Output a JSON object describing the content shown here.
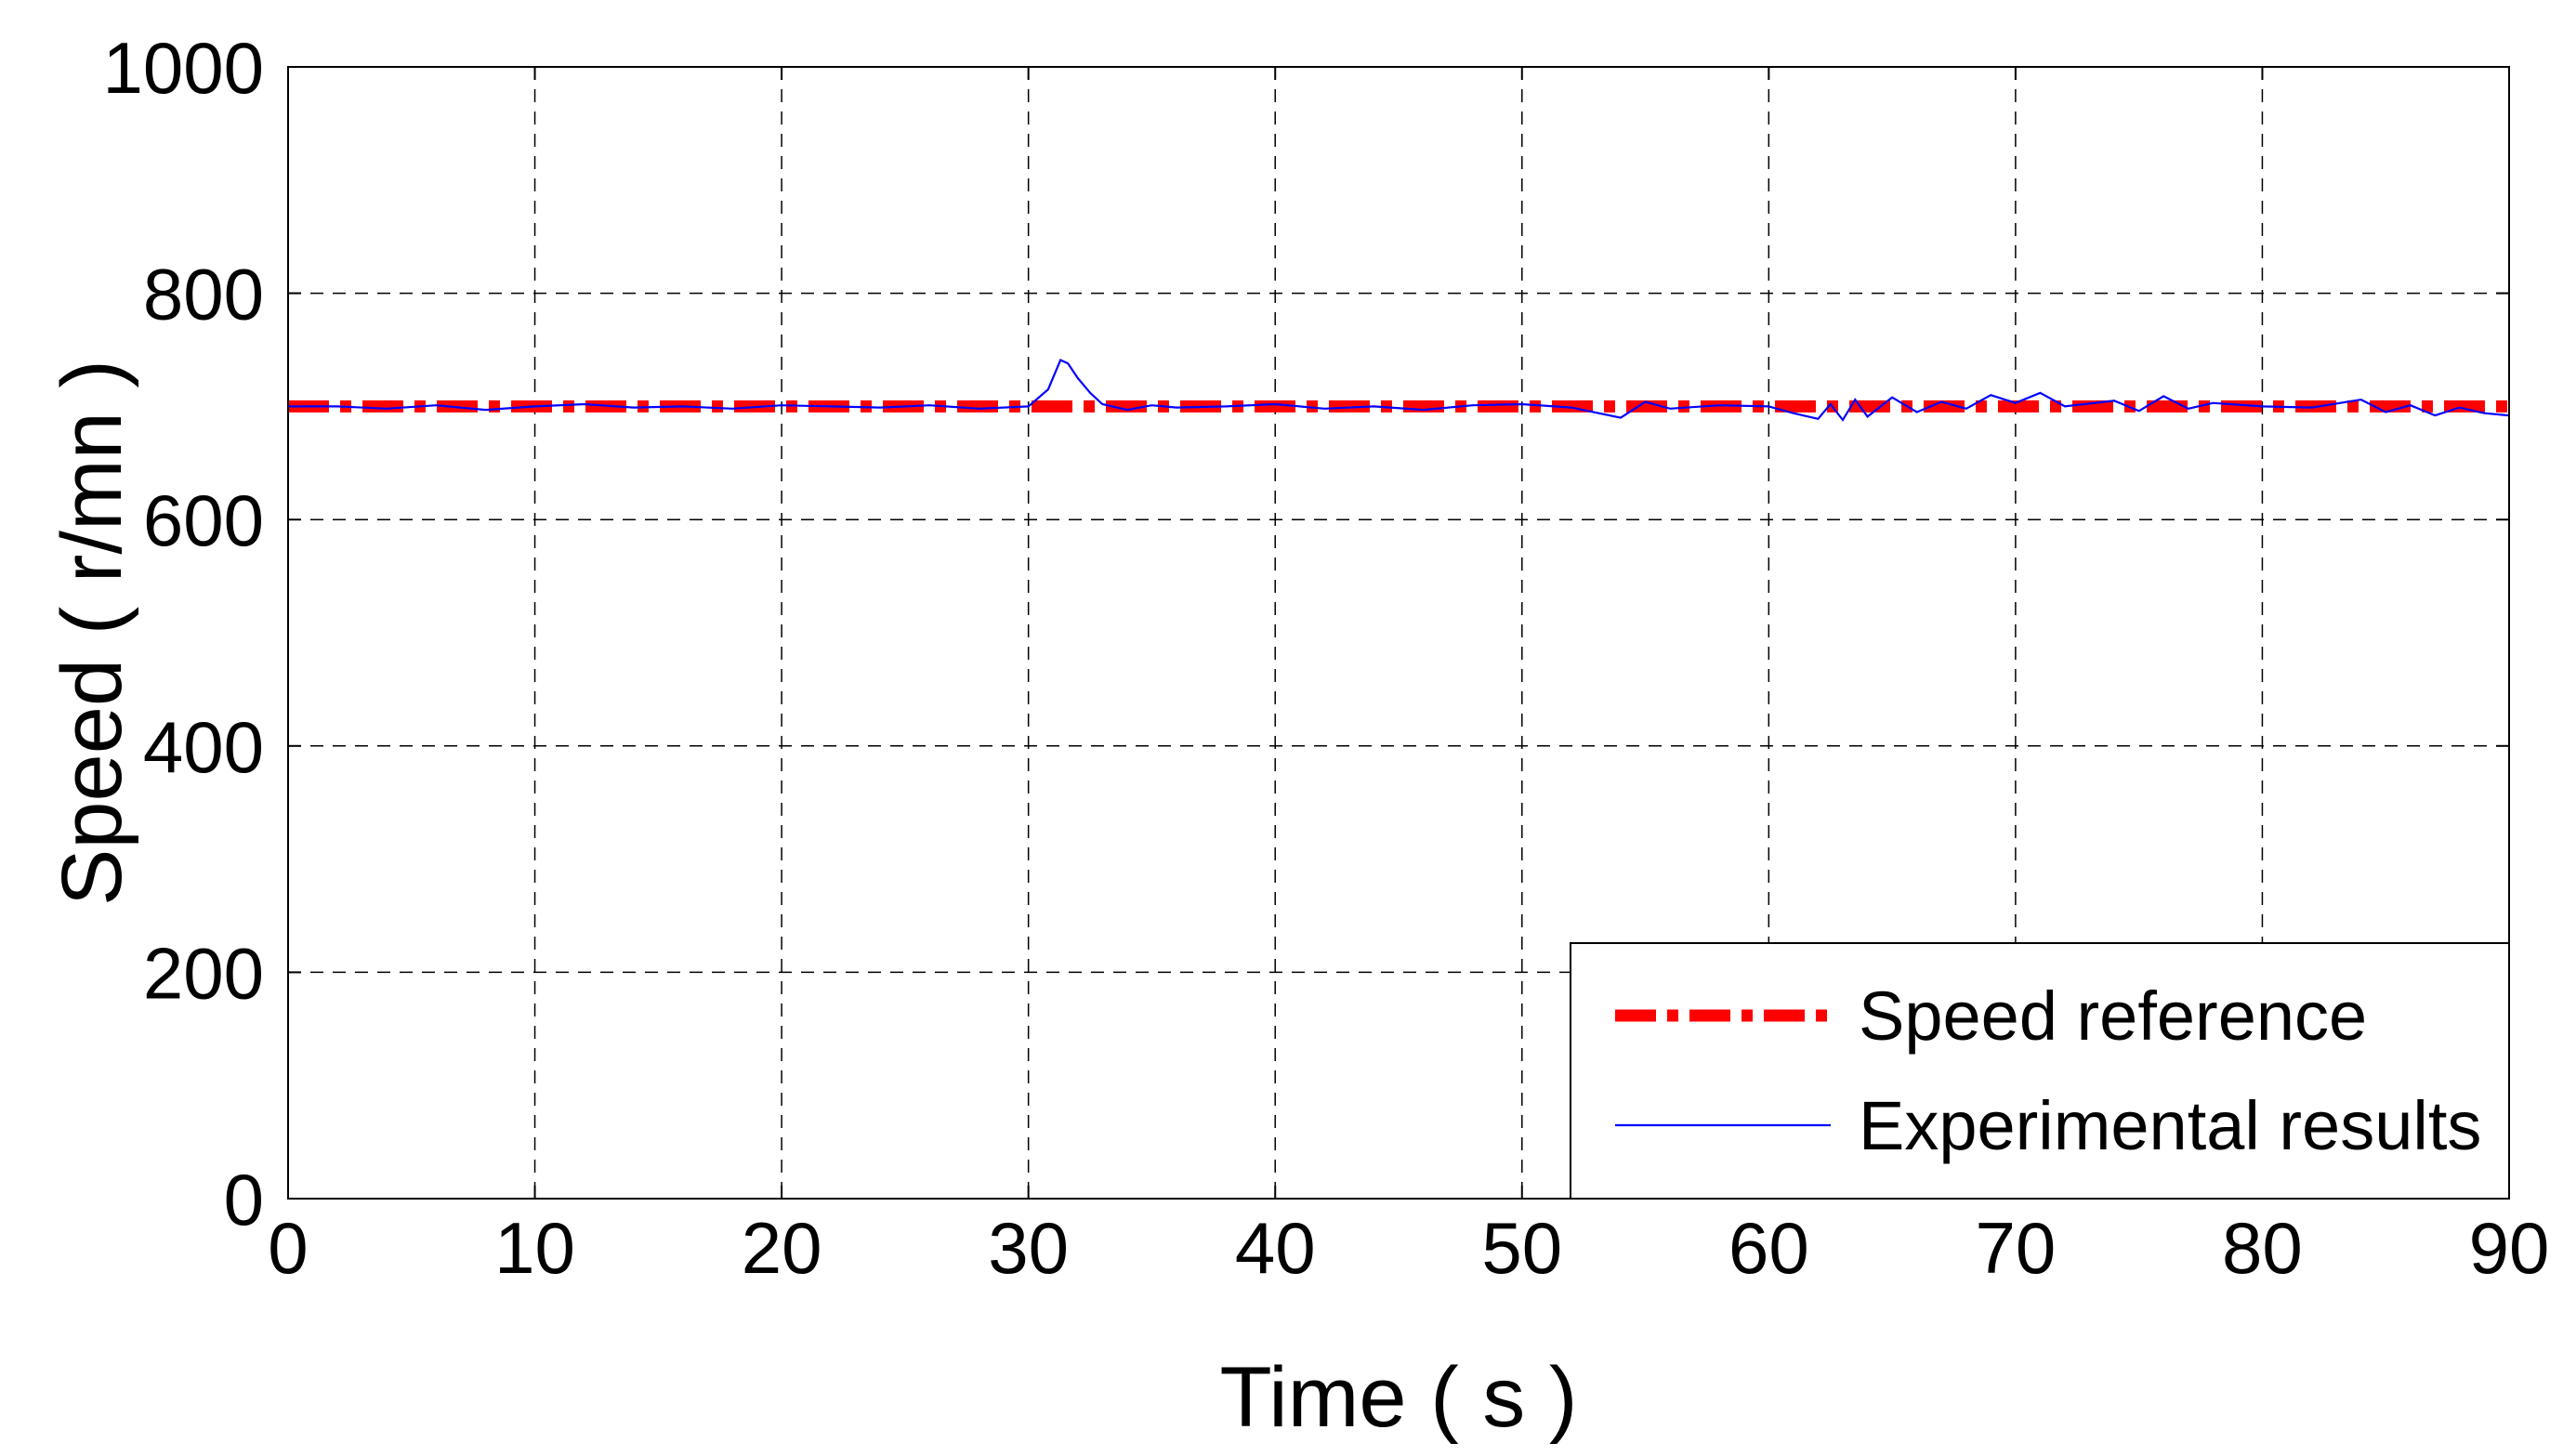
{
  "chart_data": {
    "type": "line",
    "title": "",
    "xlabel": "Time ( s )",
    "ylabel": "Speed ( r/mn )",
    "xlim": [
      0,
      90
    ],
    "ylim": [
      0,
      1000
    ],
    "x_ticks": [
      0,
      10,
      20,
      30,
      40,
      50,
      60,
      70,
      80,
      90
    ],
    "y_ticks": [
      0,
      200,
      400,
      600,
      800,
      1000
    ],
    "x_tick_labels": [
      "0",
      "10",
      "20",
      "30",
      "40",
      "50",
      "60",
      "70",
      "80",
      "90"
    ],
    "y_tick_labels": [
      "0",
      "200",
      "400",
      "600",
      "800",
      "1000"
    ],
    "grid": true,
    "legend_position": "bottom-right",
    "series": [
      {
        "name": "Speed reference",
        "color": "#ff0000",
        "style": "dash-dot",
        "x": [
          0,
          90
        ],
        "y": [
          700,
          700
        ]
      },
      {
        "name": "Experimental results",
        "color": "#0000ff",
        "style": "solid",
        "x": [
          0,
          2,
          4,
          6,
          8,
          10,
          12,
          14,
          16,
          18,
          20,
          22,
          24,
          26,
          28,
          30,
          30.8,
          31.3,
          31.6,
          32,
          32.5,
          33,
          34,
          35,
          36,
          38,
          40,
          42,
          44,
          46,
          48,
          50,
          52,
          54,
          55,
          56,
          58,
          60,
          61,
          62,
          62.5,
          63,
          63.5,
          64,
          65,
          66,
          67,
          68,
          69,
          70,
          71,
          72,
          74,
          75,
          76,
          77,
          78,
          80,
          82,
          84,
          85,
          86,
          87,
          88,
          89,
          90
        ],
        "y": [
          700,
          700,
          698,
          701,
          697,
          700,
          702,
          699,
          700,
          698,
          701,
          700,
          699,
          701,
          698,
          700,
          715,
          741,
          738,
          725,
          712,
          702,
          697,
          701,
          699,
          700,
          702,
          698,
          700,
          697,
          701,
          702,
          699,
          690,
          704,
          698,
          701,
          700,
          694,
          689,
          702,
          688,
          706,
          691,
          708,
          695,
          704,
          698,
          710,
          703,
          712,
          700,
          705,
          696,
          709,
          698,
          703,
          700,
          699,
          706,
          695,
          701,
          692,
          699,
          694,
          692
        ]
      }
    ]
  }
}
